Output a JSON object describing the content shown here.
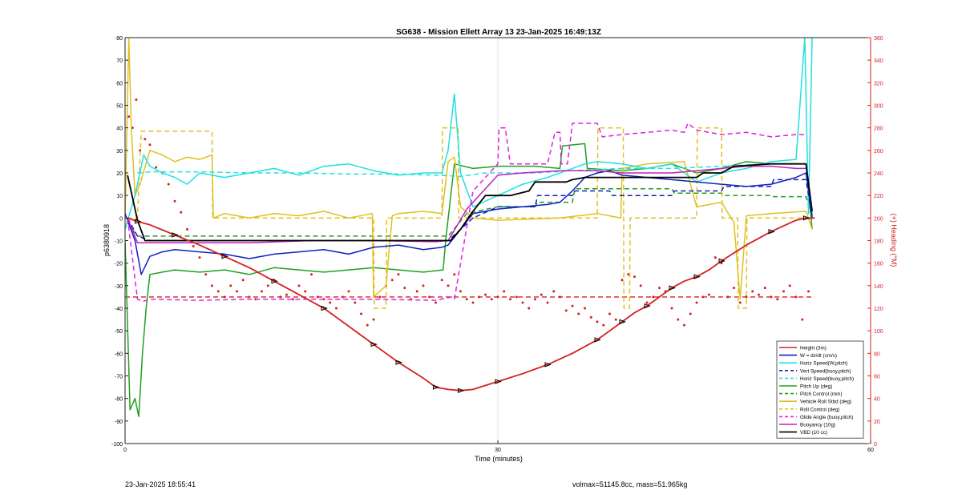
{
  "chart_data": {
    "type": "line",
    "title": "SG638 - Mission Ellett Array 13 23-Jan-2025 16:49:13Z",
    "xlabel": "Time (minutes)",
    "ylabel": "p6380918",
    "y2label": "(+) Heading (°M)",
    "xlim": [
      0,
      60
    ],
    "ylim": [
      -100,
      80
    ],
    "y2lim": [
      0,
      360
    ],
    "xticks": [
      0,
      30,
      60
    ],
    "yticks": [
      -100,
      -90,
      -80,
      -70,
      -60,
      -50,
      -40,
      -30,
      -20,
      -10,
      0,
      10,
      20,
      30,
      40,
      50,
      60,
      70,
      80
    ],
    "y2ticks": [
      0,
      20,
      40,
      60,
      80,
      100,
      120,
      140,
      160,
      180,
      200,
      220,
      240,
      260,
      280,
      300,
      320,
      340,
      360
    ],
    "grid": "x",
    "legend_position": "bottom-right",
    "series": [
      {
        "name": "Height (3m)",
        "color": "#d62020",
        "style": "solid",
        "marker": "triangle",
        "x": [
          0.2,
          1,
          2,
          4,
          6,
          8,
          10,
          12,
          14,
          16,
          18,
          20,
          21,
          22,
          24,
          25,
          26,
          27,
          28,
          30,
          32,
          34,
          36,
          38,
          39,
          40,
          41,
          42,
          43,
          44,
          45,
          46,
          47,
          48,
          50,
          52,
          54,
          54.8,
          55.5
        ],
        "y": [
          0,
          -1.5,
          -3,
          -7.5,
          -12,
          -17,
          -22,
          -28,
          -34,
          -40,
          -48,
          -56,
          -60,
          -64,
          -71,
          -75,
          -76,
          -76.5,
          -76,
          -72.5,
          -69,
          -65,
          -60,
          -54,
          -50,
          -46,
          -42,
          -39,
          -35,
          -31,
          -28,
          -26,
          -23,
          -19,
          -12,
          -6,
          -1,
          0,
          0
        ]
      },
      {
        "name": "W = dz/dt (cm/s)",
        "color": "#1020c0",
        "style": "solid",
        "x": [
          0,
          0.8,
          1.3,
          2,
          3,
          4,
          6,
          8,
          10,
          12,
          14,
          16,
          18,
          20,
          22,
          24,
          25.5,
          26,
          27,
          28,
          30,
          32,
          34,
          35,
          36,
          37,
          38,
          39,
          40,
          42,
          44,
          46,
          48,
          50,
          52,
          54,
          54.8,
          55.3
        ],
        "y": [
          2,
          -10,
          -25,
          -17,
          -15,
          -14,
          -15,
          -16,
          -18,
          -16,
          -15,
          -14,
          -16,
          -13,
          -12,
          -14,
          -13,
          -12,
          -5,
          2,
          4,
          5,
          6,
          7,
          12,
          18,
          20,
          21,
          19,
          18,
          17,
          16,
          15,
          14,
          15,
          18,
          20,
          1
        ]
      },
      {
        "name": "Horiz Speed(W,pitch)",
        "color": "#20e0e0",
        "style": "solid",
        "x": [
          0,
          0.8,
          1.5,
          2,
          3,
          4,
          5,
          6,
          8,
          10,
          12,
          14,
          16,
          18,
          20,
          22,
          24,
          25.5,
          26,
          26.5,
          27,
          28,
          30,
          32,
          34,
          35,
          36,
          37,
          38,
          40,
          42,
          44,
          46,
          48,
          50,
          52,
          54,
          54.7,
          55,
          55.3
        ],
        "y": [
          -5,
          10,
          28,
          23,
          20,
          18,
          15,
          20,
          18,
          20,
          22,
          19,
          23,
          24,
          21,
          19,
          20,
          20,
          30,
          55,
          20,
          5,
          10,
          15,
          18,
          20,
          22,
          24,
          25,
          24,
          22,
          24,
          16,
          20,
          22,
          25,
          26,
          80,
          2,
          80
        ]
      },
      {
        "name": "Vert Speed(buoy,pitch)",
        "color": "#1020c0",
        "style": "dashed",
        "x": [
          0.2,
          1,
          2,
          6,
          10,
          14,
          18,
          22,
          26,
          28,
          30,
          33,
          33.2,
          36,
          36.2,
          39,
          39.2,
          44,
          44.2,
          48,
          48.2,
          52,
          52.2,
          54.8,
          55.3
        ],
        "y": [
          0,
          -8,
          -10,
          -10,
          -10,
          -10,
          -10,
          -10,
          -10,
          0,
          5,
          5,
          10,
          10,
          12,
          12,
          10,
          10,
          12,
          12,
          14,
          14,
          17,
          17,
          0
        ]
      },
      {
        "name": "Horiz Speed(buoy,pitch)",
        "color": "#20e0e0",
        "style": "dashed",
        "x": [
          1,
          2,
          6,
          10,
          14,
          18,
          22,
          25,
          27,
          29,
          33,
          36,
          40,
          44,
          48,
          52,
          54.8
        ],
        "y": [
          20,
          20.5,
          20.5,
          20,
          20,
          19.5,
          19.5,
          19,
          18.5,
          20,
          20,
          21,
          22,
          22,
          23,
          24,
          24
        ]
      },
      {
        "name": "Pitch Up (deg)",
        "color": "#20a020",
        "style": "solid",
        "x": [
          0,
          0.4,
          0.8,
          1.1,
          1.4,
          1.7,
          2,
          3,
          4,
          6,
          8,
          10,
          12,
          14,
          16,
          18,
          20,
          22,
          24,
          25.6,
          25.8,
          26.5,
          28,
          30,
          33,
          35,
          35.2,
          37,
          37.2,
          40,
          42,
          44,
          46,
          48,
          50,
          52,
          54.8,
          55.3
        ],
        "y": [
          -10,
          -85,
          -80,
          -88,
          -60,
          -40,
          -25,
          -24,
          -23,
          -24,
          -23,
          -25,
          -22,
          -23,
          -24,
          -23,
          -22,
          -23,
          -24,
          -23,
          -10,
          24,
          22,
          23,
          23,
          22,
          32,
          33,
          22,
          21,
          22,
          24,
          20,
          22,
          25,
          24,
          24,
          -5
        ]
      },
      {
        "name": "Pitch Control (mm)",
        "color": "#20a020",
        "style": "dashed",
        "x": [
          0.2,
          1,
          2,
          10,
          20,
          26,
          27.5,
          30,
          33,
          33.2,
          36,
          36.2,
          40,
          44,
          44.2,
          48,
          48.2,
          52,
          52.2,
          54.8,
          55.3
        ],
        "y": [
          -2,
          -8,
          -8,
          -8,
          -8,
          -8,
          2,
          5,
          5,
          7,
          7,
          13,
          13,
          13,
          11,
          11,
          10,
          10,
          9.5,
          9.5,
          0
        ]
      },
      {
        "name": "Vehicle Roll Stbd (deg)",
        "color": "#e0c020",
        "style": "solid",
        "x": [
          0,
          0.3,
          0.5,
          0.8,
          1.2,
          2,
          3,
          4,
          5,
          6,
          7,
          7.1,
          8,
          10,
          12,
          14,
          16,
          18,
          19.9,
          20,
          21,
          21.5,
          22,
          24,
          25.5,
          26,
          26.5,
          27,
          28,
          30,
          35,
          38,
          39.9,
          40,
          41,
          42,
          45,
          46,
          48,
          49,
          49.5,
          50,
          52,
          54.8,
          55.3
        ],
        "y": [
          0,
          80,
          40,
          10,
          15,
          30,
          28,
          25,
          27,
          26,
          28,
          0,
          2,
          0,
          2,
          1,
          3,
          0,
          2,
          -35,
          -30,
          1,
          2,
          3,
          2,
          25,
          27,
          5,
          0,
          -1,
          0,
          2,
          0,
          22,
          23,
          24,
          25,
          5,
          7,
          -2,
          -36,
          1,
          2,
          3,
          -5
        ]
      },
      {
        "name": "Roll Control (deg)",
        "color": "#e0c020",
        "style": "dashed",
        "x": [
          0.2,
          1,
          1.3,
          7,
          7.05,
          20,
          20.05,
          21,
          21.05,
          25.5,
          25.55,
          26.8,
          26.85,
          38,
          38.05,
          40.1,
          40.15,
          40.6,
          40.65,
          46,
          46.05,
          48,
          48.05,
          49.3,
          49.35,
          50,
          50.05,
          54.8,
          55.3
        ],
        "y": [
          0,
          0,
          38.5,
          38.5,
          0,
          0,
          -40,
          -40,
          0,
          0,
          40,
          40,
          0,
          0,
          40,
          40,
          -40,
          -40,
          0,
          0,
          40,
          40,
          0,
          0,
          -40,
          -40,
          0,
          0,
          0
        ]
      },
      {
        "name": "Glide Angle (buoy,pitch)",
        "color": "#e020e0",
        "style": "dashed",
        "x": [
          0.2,
          1,
          1.4,
          2,
          6,
          10,
          15,
          20,
          25,
          26.3,
          26.5,
          28,
          30,
          30.1,
          30.6,
          31,
          34,
          34.6,
          35,
          35.1,
          35.6,
          36,
          36.2,
          38,
          38.4,
          40,
          44,
          45,
          45.3,
          46,
          48,
          50,
          52,
          54,
          54.8
        ],
        "y": [
          0,
          -36,
          -37,
          -36,
          -36.5,
          -36,
          -36,
          -36,
          -36.5,
          -35,
          -36,
          12,
          24,
          40,
          40,
          24,
          24,
          38,
          38,
          24,
          24,
          42,
          42,
          42,
          36,
          37,
          39,
          38,
          42,
          39,
          37,
          38,
          36,
          37,
          37
        ]
      },
      {
        "name": "Buoyancy (10g)",
        "color": "#c020c0",
        "style": "solid",
        "x": [
          0.2,
          1,
          1.6,
          5,
          10,
          15,
          20,
          25,
          26,
          27.5,
          30,
          32,
          35,
          38,
          40,
          44,
          46,
          48,
          50,
          52,
          54,
          54.8
        ],
        "y": [
          0,
          -11,
          -11,
          -11,
          -11,
          -10,
          -10,
          -10.5,
          -10,
          4,
          19,
          20,
          21,
          21,
          20,
          20,
          21,
          22,
          23,
          23,
          22,
          22
        ]
      },
      {
        "name": "VBD (10 cc)",
        "color": "#000000",
        "style": "solid",
        "x": [
          0.2,
          1,
          1.6,
          5,
          10,
          15,
          20,
          25,
          26.2,
          27,
          28,
          29,
          31,
          32.5,
          33,
          35.5,
          36,
          37,
          39,
          40,
          42,
          44,
          46,
          46.5,
          48,
          49,
          52,
          54.8,
          55.3
        ],
        "y": [
          19,
          -1,
          -10,
          -10,
          -10,
          -10,
          -10,
          -10,
          -10,
          -5,
          3,
          10,
          10,
          12,
          16,
          16,
          17,
          18,
          18,
          18,
          18,
          18,
          18,
          20,
          20,
          23,
          24,
          24,
          3
        ]
      }
    ],
    "heading": {
      "color": "#d62020",
      "mean_line": 130,
      "x": [
        0.3,
        0.6,
        0.9,
        1.2,
        1.6,
        2,
        2.5,
        3,
        3.5,
        4,
        4.5,
        5,
        5.5,
        6,
        6.5,
        7,
        7.5,
        8,
        8.5,
        9,
        9.5,
        10,
        10.5,
        11,
        11.5,
        12,
        12.5,
        13,
        13.5,
        14,
        14.5,
        15,
        15.5,
        16,
        16.5,
        17,
        17.5,
        18,
        18.5,
        19,
        19.5,
        20,
        20.5,
        21,
        21.5,
        22,
        22.5,
        23,
        23.5,
        24,
        24.5,
        25,
        25.5,
        26,
        26.5,
        27,
        27.5,
        28,
        28.5,
        29,
        29.5,
        30,
        30.5,
        31,
        31.5,
        32,
        32.5,
        33,
        33.5,
        34,
        34.5,
        35,
        35.5,
        36,
        36.5,
        37,
        37.5,
        38,
        38.5,
        39,
        39.5,
        40,
        40.5,
        41,
        41.5,
        42,
        42.5,
        43,
        43.5,
        44,
        44.5,
        45,
        45.5,
        46,
        46.5,
        47,
        47.5,
        48,
        48.5,
        49,
        49.5,
        50,
        50.5,
        51,
        51.5,
        52,
        52.5,
        53,
        53.5,
        54,
        54.5,
        55
      ],
      "y": [
        290,
        280,
        305,
        260,
        270,
        265,
        245,
        240,
        230,
        215,
        205,
        190,
        175,
        165,
        150,
        140,
        135,
        130,
        140,
        135,
        145,
        130,
        128,
        135,
        140,
        145,
        130,
        132,
        128,
        140,
        135,
        150,
        130,
        128,
        125,
        120,
        130,
        135,
        125,
        115,
        105,
        110,
        130,
        140,
        145,
        150,
        138,
        128,
        135,
        140,
        130,
        125,
        145,
        140,
        150,
        135,
        128,
        125,
        130,
        132,
        128,
        130,
        135,
        128,
        130,
        125,
        120,
        128,
        132,
        125,
        135,
        130,
        118,
        122,
        115,
        120,
        112,
        108,
        105,
        115,
        110,
        145,
        150,
        148,
        140,
        125,
        130,
        138,
        135,
        120,
        110,
        105,
        115,
        125,
        130,
        132,
        165,
        160,
        130,
        138,
        125,
        130,
        135,
        132,
        138,
        130,
        128,
        135,
        140,
        130,
        110,
        135
      ]
    }
  },
  "footer": {
    "left": "23-Jan-2025 18:55:41",
    "right": "volmax=51145.8cc, mass=51.965kg"
  }
}
